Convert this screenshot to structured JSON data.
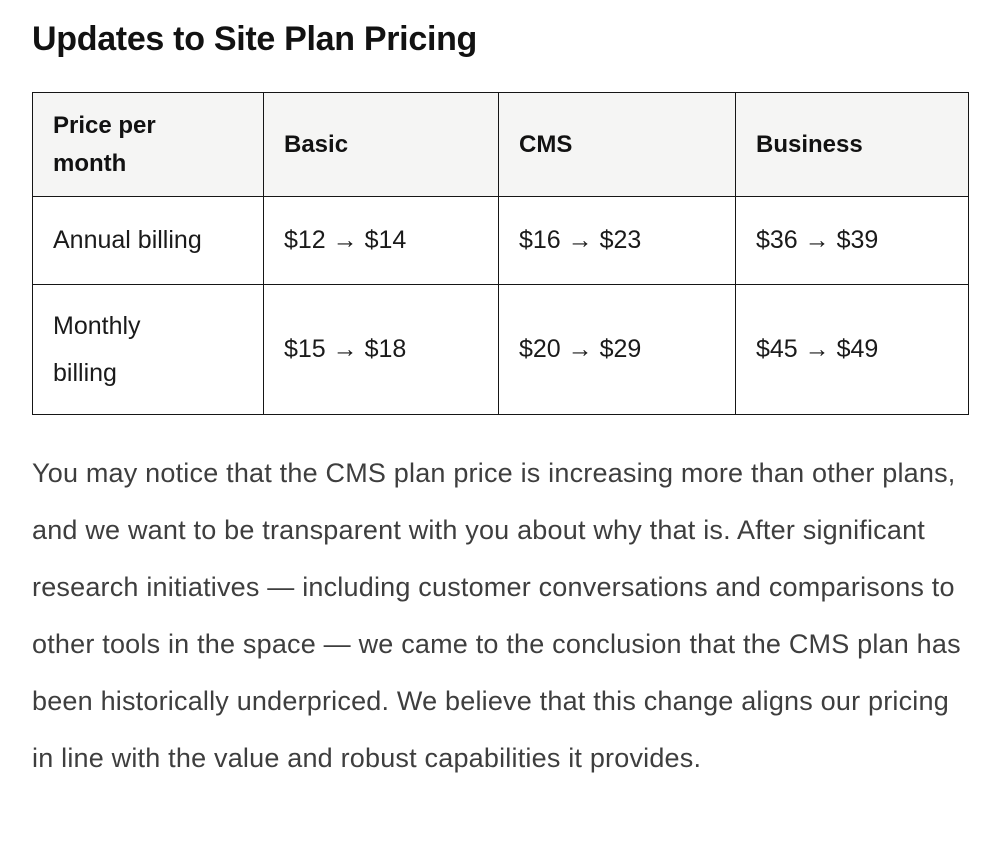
{
  "page": {
    "title": "Updates to Site Plan Pricing"
  },
  "pricing_table": {
    "headers": [
      "Price per month",
      "Basic",
      "CMS",
      "Business"
    ],
    "rows": [
      [
        "Annual billing",
        "$12 → $14",
        "$16 → $23",
        "$36 → $39"
      ],
      [
        "Monthly billing",
        "$15 → $18",
        "$20 → $29",
        "$45 → $49"
      ]
    ]
  },
  "body_paragraph": "You may notice that the CMS plan price is increasing more than other plans, and we want to be transparent with you about why that is. After significant research initiatives — including customer conversations and comparisons to other tools in the space — we came to the conclusion that the CMS plan has been historically underpriced. We believe that this change aligns our pricing in line with the value and robust capabilities it provides.",
  "colors": {
    "table_header_background": "#f5f5f4",
    "table_border": "#161616",
    "title_text": "#121212",
    "body_text": "#3e3e3e"
  }
}
